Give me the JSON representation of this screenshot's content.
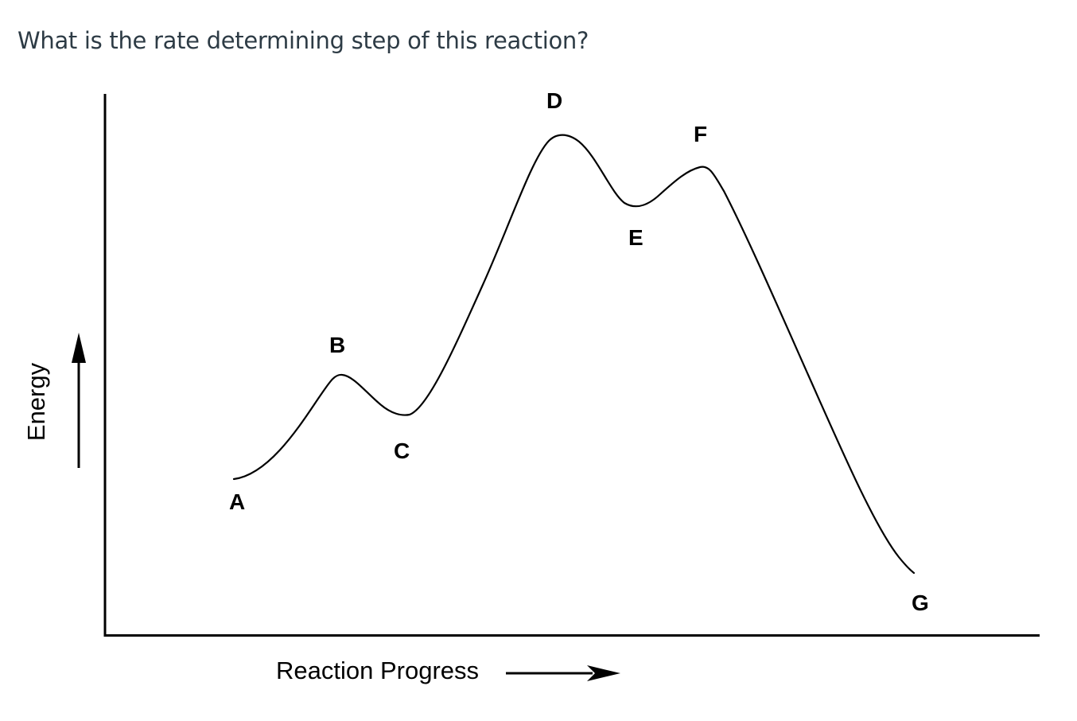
{
  "question": {
    "text": "What is the rate determining step of this reaction?"
  },
  "diagram": {
    "xlabel": "Reaction Progress",
    "ylabel": "Energy",
    "points": [
      "A",
      "B",
      "C",
      "D",
      "E",
      "F",
      "G"
    ]
  }
}
